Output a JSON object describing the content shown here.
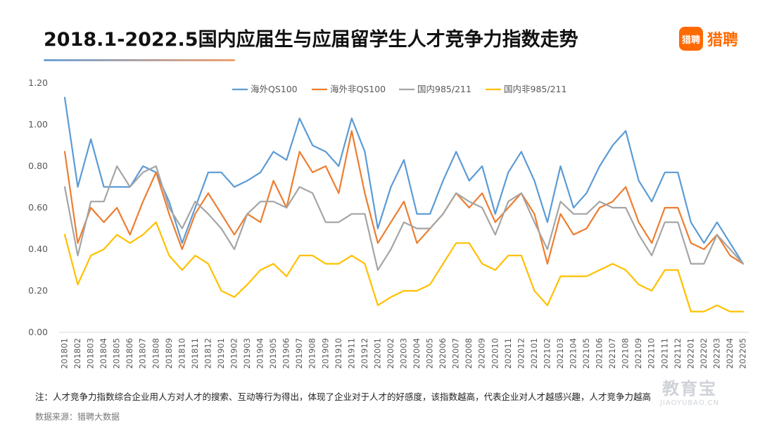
{
  "header": {
    "title": "2018.1-2022.5国内应届生与应届留学生人才竞争力指数走势",
    "brand_logo_text": "猎聘",
    "brand_name": "猎聘"
  },
  "footer": {
    "note": "注：人才竞争力指数综合企业用人方对人才的搜索、互动等行为得出，体现了企业对于人才的好感度，该指数越高，代表企业对人才越感兴趣，人才竞争力越高",
    "source": "数据来源：猎聘大数据"
  },
  "watermark": {
    "main": "教育宝",
    "sub": "JIAOYUBAO.CN"
  },
  "chart_data": {
    "type": "line",
    "title": "2018.1-2022.5国内应届生与应届留学生人才竞争力指数走势",
    "xlabel": "",
    "ylabel": "",
    "ylim": [
      0,
      1.2
    ],
    "yticks": [
      "0.00",
      "0.20",
      "0.40",
      "0.60",
      "0.80",
      "1.00",
      "1.20"
    ],
    "grid": false,
    "legend_position": "top",
    "categories": [
      "201801",
      "201802",
      "201803",
      "201804",
      "201805",
      "201806",
      "201807",
      "201808",
      "201809",
      "201810",
      "201811",
      "201812",
      "201901",
      "201902",
      "201903",
      "201904",
      "201905",
      "201906",
      "201907",
      "201908",
      "201909",
      "201910",
      "201911",
      "201912",
      "202001",
      "202002",
      "202003",
      "202004",
      "202005",
      "202006",
      "202007",
      "202008",
      "202009",
      "202010",
      "202011",
      "202012",
      "202101",
      "202102",
      "202103",
      "202104",
      "202105",
      "202106",
      "202107",
      "202108",
      "202109",
      "202110",
      "202111",
      "202112",
      "202201",
      "202202",
      "202203",
      "202204",
      "202205"
    ],
    "series": [
      {
        "name": "海外QS100",
        "color": "#5b9bd5",
        "values": [
          1.13,
          0.7,
          0.93,
          0.7,
          0.7,
          0.7,
          0.8,
          0.77,
          0.63,
          0.43,
          0.6,
          0.77,
          0.77,
          0.7,
          0.73,
          0.77,
          0.87,
          0.83,
          1.03,
          0.9,
          0.87,
          0.8,
          1.03,
          0.87,
          0.5,
          0.7,
          0.83,
          0.57,
          0.57,
          0.73,
          0.87,
          0.73,
          0.8,
          0.57,
          0.77,
          0.87,
          0.73,
          0.53,
          0.8,
          0.6,
          0.67,
          0.8,
          0.9,
          0.97,
          0.73,
          0.63,
          0.77,
          0.77,
          0.53,
          0.43,
          0.53,
          0.43,
          0.33
        ]
      },
      {
        "name": "海外非QS100",
        "color": "#ed7d31",
        "values": [
          0.87,
          0.43,
          0.6,
          0.53,
          0.6,
          0.47,
          0.63,
          0.77,
          0.57,
          0.4,
          0.57,
          0.67,
          0.57,
          0.47,
          0.57,
          0.53,
          0.73,
          0.6,
          0.87,
          0.77,
          0.8,
          0.67,
          0.97,
          0.67,
          0.43,
          0.53,
          0.63,
          0.43,
          0.5,
          0.57,
          0.67,
          0.6,
          0.67,
          0.53,
          0.6,
          0.67,
          0.57,
          0.33,
          0.57,
          0.47,
          0.5,
          0.6,
          0.63,
          0.7,
          0.53,
          0.43,
          0.6,
          0.6,
          0.43,
          0.4,
          0.47,
          0.37,
          0.33
        ]
      },
      {
        "name": "国内985/211",
        "color": "#a5a5a5",
        "values": [
          0.7,
          0.37,
          0.63,
          0.63,
          0.8,
          0.7,
          0.77,
          0.8,
          0.6,
          0.5,
          0.63,
          0.57,
          0.5,
          0.4,
          0.57,
          0.63,
          0.63,
          0.6,
          0.7,
          0.67,
          0.53,
          0.53,
          0.57,
          0.57,
          0.3,
          0.4,
          0.53,
          0.5,
          0.5,
          0.57,
          0.67,
          0.63,
          0.6,
          0.47,
          0.63,
          0.67,
          0.53,
          0.4,
          0.63,
          0.57,
          0.57,
          0.63,
          0.6,
          0.6,
          0.47,
          0.37,
          0.53,
          0.53,
          0.33,
          0.33,
          0.47,
          0.4,
          0.33
        ]
      },
      {
        "name": "国内非985/211",
        "color": "#ffc000",
        "values": [
          0.47,
          0.23,
          0.37,
          0.4,
          0.47,
          0.43,
          0.47,
          0.53,
          0.37,
          0.3,
          0.37,
          0.33,
          0.2,
          0.17,
          0.23,
          0.3,
          0.33,
          0.27,
          0.37,
          0.37,
          0.33,
          0.33,
          0.37,
          0.33,
          0.13,
          0.17,
          0.2,
          0.2,
          0.23,
          0.33,
          0.43,
          0.43,
          0.33,
          0.3,
          0.37,
          0.37,
          0.2,
          0.13,
          0.27,
          0.27,
          0.27,
          0.3,
          0.33,
          0.3,
          0.23,
          0.2,
          0.3,
          0.3,
          0.1,
          0.1,
          0.13,
          0.1,
          0.1
        ]
      }
    ]
  }
}
